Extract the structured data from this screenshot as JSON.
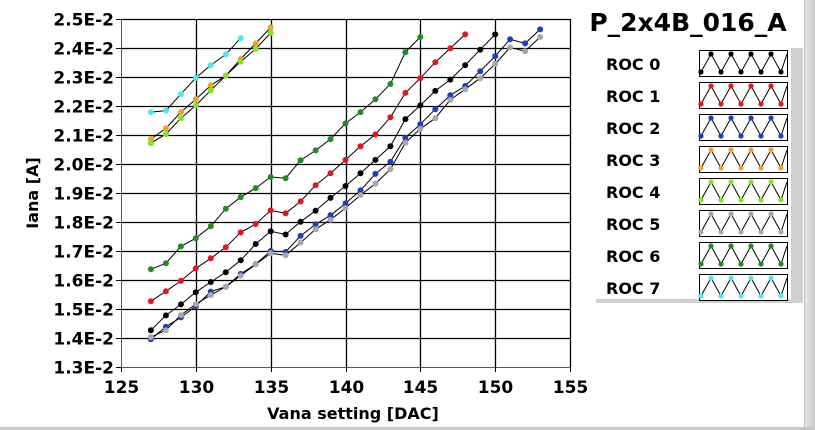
{
  "chart_data": {
    "type": "line",
    "title": "P_2x4B_016_A",
    "xlabel": "Vana setting [DAC]",
    "ylabel": "Iana [A]",
    "xlim": [
      125,
      155
    ],
    "ylim": [
      0.013,
      0.025
    ],
    "xticks": [
      125,
      130,
      135,
      140,
      145,
      150,
      155
    ],
    "xtick_labels": [
      "125",
      "130",
      "135",
      "140",
      "145",
      "150",
      "155"
    ],
    "yticks": [
      0.013,
      0.014,
      0.015,
      0.016,
      0.017,
      0.018,
      0.019,
      0.02,
      0.021,
      0.022,
      0.023,
      0.024,
      0.025
    ],
    "ytick_labels": [
      "1.3E-2",
      "1.4E-2",
      "1.5E-2",
      "1.6E-2",
      "1.7E-2",
      "1.8E-2",
      "1.9E-2",
      "2.0E-2",
      "2.1E-2",
      "2.2E-2",
      "2.3E-2",
      "2.4E-2",
      "2.5E-2"
    ],
    "grid": true,
    "legend_position": "right",
    "series": [
      {
        "name": "ROC 0",
        "color": "#000000",
        "x": [
          127,
          128,
          129,
          130,
          131,
          132,
          133,
          134,
          135,
          136,
          137,
          138,
          139,
          140,
          141,
          142,
          143,
          144,
          145,
          146,
          147,
          148,
          149,
          150
        ],
        "y": [
          0.01427,
          0.01478,
          0.01516,
          0.01558,
          0.01593,
          0.01627,
          0.01668,
          0.01724,
          0.01768,
          0.01757,
          0.01801,
          0.01839,
          0.01883,
          0.01924,
          0.01968,
          0.02014,
          0.02061,
          0.02155,
          0.02202,
          0.02252,
          0.02291,
          0.02341,
          0.02394,
          0.02447
        ]
      },
      {
        "name": "ROC 1",
        "color": "#e8141c",
        "x": [
          127,
          128,
          129,
          130,
          131,
          132,
          133,
          134,
          135,
          136,
          137,
          138,
          139,
          140,
          141,
          142,
          143,
          144,
          145,
          146,
          147,
          148
        ],
        "y": [
          0.01527,
          0.01561,
          0.01597,
          0.0164,
          0.01675,
          0.01713,
          0.01764,
          0.01793,
          0.0184,
          0.0183,
          0.01871,
          0.01927,
          0.01968,
          0.02014,
          0.02061,
          0.02102,
          0.02161,
          0.02245,
          0.02296,
          0.02351,
          0.02399,
          0.02447
        ]
      },
      {
        "name": "ROC 2",
        "color": "#1a3fc0",
        "x": [
          127,
          128,
          129,
          130,
          131,
          132,
          133,
          134,
          135,
          136,
          137,
          138,
          139,
          140,
          141,
          142,
          143,
          144,
          145,
          146,
          147,
          148,
          149,
          150,
          151,
          152,
          153
        ],
        "y": [
          0.01396,
          0.01439,
          0.01471,
          0.0151,
          0.0156,
          0.01577,
          0.01621,
          0.01655,
          0.017,
          0.01697,
          0.01752,
          0.01792,
          0.01823,
          0.01864,
          0.01909,
          0.01966,
          0.02008,
          0.02091,
          0.02137,
          0.02189,
          0.02237,
          0.02269,
          0.0232,
          0.02372,
          0.0243,
          0.02416,
          0.02464
        ]
      },
      {
        "name": "ROC 3",
        "color": "#f5a02a",
        "x": [
          127,
          128,
          129,
          130,
          131,
          132,
          133,
          134,
          135
        ],
        "y": [
          0.02086,
          0.02123,
          0.02179,
          0.02223,
          0.02271,
          0.02305,
          0.02362,
          0.02416,
          0.02471
        ]
      },
      {
        "name": "ROC 4",
        "color": "#7ee61e",
        "x": [
          127,
          128,
          129,
          130,
          131,
          132,
          133,
          134,
          135
        ],
        "y": [
          0.02072,
          0.02103,
          0.02158,
          0.02202,
          0.02254,
          0.02305,
          0.02353,
          0.02397,
          0.02452
        ]
      },
      {
        "name": "ROC 5",
        "color": "#a8a8a8",
        "x": [
          127,
          128,
          129,
          130,
          131,
          132,
          133,
          134,
          135,
          136,
          137,
          138,
          139,
          140,
          141,
          142,
          143,
          144,
          145,
          146,
          147,
          148,
          149,
          150,
          151,
          152,
          153
        ],
        "y": [
          0.01403,
          0.01427,
          0.01479,
          0.01517,
          0.01548,
          0.01577,
          0.01615,
          0.01654,
          0.01692,
          0.01685,
          0.01729,
          0.01775,
          0.01808,
          0.01848,
          0.01893,
          0.01932,
          0.01982,
          0.02073,
          0.02121,
          0.02158,
          0.02221,
          0.02258,
          0.02296,
          0.02345,
          0.02402,
          0.02389,
          0.02438
        ]
      },
      {
        "name": "ROC 6",
        "color": "#1e8c1e",
        "x": [
          127,
          128,
          129,
          130,
          131,
          132,
          133,
          134,
          135,
          136,
          137,
          138,
          139,
          140,
          141,
          142,
          143,
          144,
          145
        ],
        "y": [
          0.01637,
          0.01658,
          0.01716,
          0.01744,
          0.01785,
          0.01846,
          0.01886,
          0.01917,
          0.01955,
          0.01951,
          0.02013,
          0.02047,
          0.02086,
          0.0214,
          0.02179,
          0.02223,
          0.02276,
          0.02386,
          0.02438
        ]
      },
      {
        "name": "ROC 7",
        "color": "#4fe6ee",
        "x": [
          127,
          128,
          129,
          130,
          131,
          132,
          133
        ],
        "y": [
          0.02179,
          0.02184,
          0.02241,
          0.02297,
          0.02341,
          0.02378,
          0.02434
        ]
      }
    ]
  }
}
